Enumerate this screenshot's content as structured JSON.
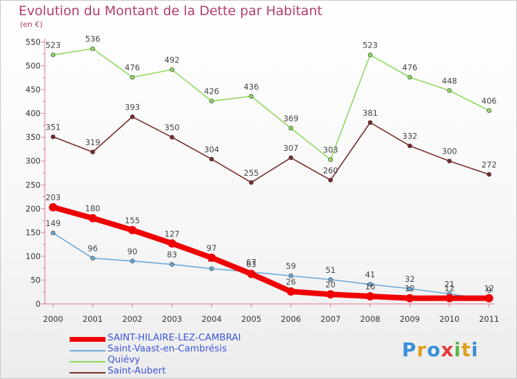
{
  "header": {
    "title": "Evolution du Montant de la Dette par Habitant",
    "unit": "(en €)"
  },
  "brand": {
    "text": "Proxiti",
    "letter_colors": [
      "#3a8fd8",
      "#e0a020",
      "#3a8fd8",
      "#e03a3a",
      "#5ab84a",
      "#e0a020",
      "#3a8fd8"
    ]
  },
  "chart_data": {
    "type": "line",
    "x": [
      "2000",
      "2001",
      "2002",
      "2003",
      "2004",
      "2005",
      "2006",
      "2007",
      "2008",
      "2009",
      "2010",
      "2011"
    ],
    "ylim": [
      0,
      550
    ],
    "yticks": [
      "0",
      "50",
      "100",
      "150",
      "200",
      "250",
      "300",
      "350",
      "400",
      "450",
      "500",
      "550"
    ],
    "grid": false,
    "legend_position": "bottom-left",
    "series": [
      {
        "name": "Saint-Aubert",
        "color": "#7a2a2a",
        "values": [
          351,
          319,
          393,
          350,
          304,
          255,
          307,
          260,
          381,
          332,
          300,
          272
        ],
        "labels": [
          "351",
          "319",
          "393",
          "350",
          "304",
          "255",
          "307",
          "260",
          "381",
          "332",
          "300",
          "272"
        ]
      },
      {
        "name": "Quiévy",
        "color": "#8fd860",
        "values": [
          523,
          536,
          476,
          492,
          426,
          436,
          369,
          303,
          523,
          476,
          448,
          406
        ],
        "labels": [
          "523",
          "536",
          "476",
          "492",
          "426",
          "436",
          "369",
          "303",
          "523",
          "476",
          "448",
          "406"
        ]
      },
      {
        "name": "Saint-Vaast-en-Cambrésis",
        "color": "#6aa8d8",
        "values": [
          149,
          96,
          90,
          83,
          74,
          67,
          59,
          51,
          41,
          32,
          21,
          9
        ],
        "labels": [
          "149",
          "96",
          "90",
          "83",
          "74",
          "67",
          "59",
          "51",
          "41",
          "32",
          "21",
          "9"
        ]
      },
      {
        "name": "SAINT-HILAIRE-LEZ-CAMBRAI",
        "color": "#f00000",
        "values": [
          203,
          180,
          155,
          127,
          97,
          63,
          26,
          20,
          16,
          12,
          12,
          12
        ],
        "labels": [
          "203",
          "180",
          "155",
          "127",
          "97",
          "63",
          "26",
          "20",
          "16",
          "12",
          "12",
          "12"
        ]
      }
    ]
  },
  "legend": {
    "items": [
      {
        "label": "SAINT-HILAIRE-LEZ-CAMBRAI",
        "color": "#f00000",
        "thick": true
      },
      {
        "label": "Saint-Vaast-en-Cambrésis",
        "color": "#6aa8d8",
        "thick": false
      },
      {
        "label": "Quiévy",
        "color": "#8fd860",
        "thick": false
      },
      {
        "label": "Saint-Aubert",
        "color": "#7a2a2a",
        "thick": false
      }
    ]
  }
}
